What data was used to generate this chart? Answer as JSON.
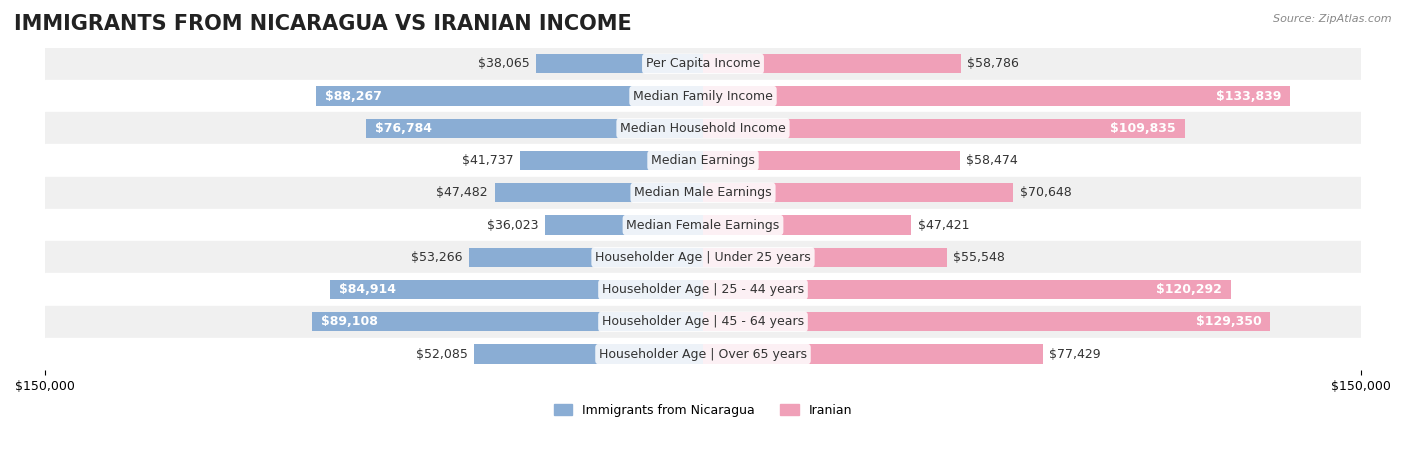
{
  "title": "IMMIGRANTS FROM NICARAGUA VS IRANIAN INCOME",
  "source": "Source: ZipAtlas.com",
  "categories": [
    "Per Capita Income",
    "Median Family Income",
    "Median Household Income",
    "Median Earnings",
    "Median Male Earnings",
    "Median Female Earnings",
    "Householder Age | Under 25 years",
    "Householder Age | 25 - 44 years",
    "Householder Age | 45 - 64 years",
    "Householder Age | Over 65 years"
  ],
  "nicaragua_values": [
    38065,
    88267,
    76784,
    41737,
    47482,
    36023,
    53266,
    84914,
    89108,
    52085
  ],
  "iranian_values": [
    58786,
    133839,
    109835,
    58474,
    70648,
    47421,
    55548,
    120292,
    129350,
    77429
  ],
  "nicaragua_labels": [
    "$38,065",
    "$88,267",
    "$76,784",
    "$41,737",
    "$47,482",
    "$36,023",
    "$53,266",
    "$84,914",
    "$89,108",
    "$52,085"
  ],
  "iranian_labels": [
    "$58,786",
    "$133,839",
    "$109,835",
    "$58,474",
    "$70,648",
    "$47,421",
    "$55,548",
    "$120,292",
    "$129,350",
    "$77,429"
  ],
  "nicaragua_color_bar": "#8aadd4",
  "iranian_color_bar": "#f0a0b8",
  "nicaragua_color_dark": "#5b8fc7",
  "iranian_color_dark": "#e8608a",
  "nicaragua_label_dark_threshold": 70000,
  "iranian_label_dark_threshold": 100000,
  "axis_max": 150000,
  "row_bg_color": "#f0f0f0",
  "row_bg_color2": "#ffffff",
  "legend_nicaragua": "Immigrants from Nicaragua",
  "legend_iranian": "Iranian",
  "bar_height": 0.6,
  "title_fontsize": 15,
  "label_fontsize": 9,
  "axis_label_fontsize": 9
}
